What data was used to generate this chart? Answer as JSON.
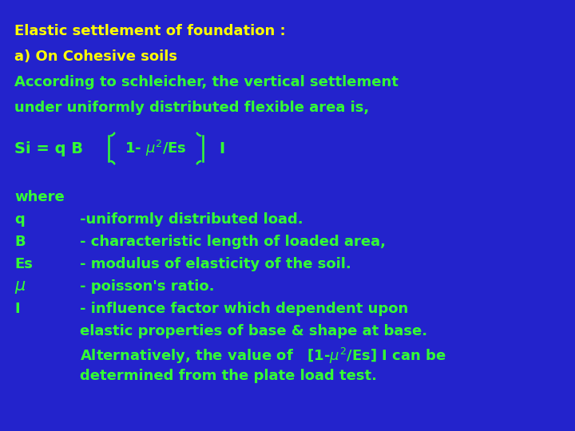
{
  "bg_color": "#2323CC",
  "text_color_yellow": "#FFFF00",
  "text_color_green": "#33FF33",
  "title_lines": [
    "Elastic settlement of foundation :",
    "a) On Cohesive soils",
    "According to schleicher, the vertical settlement",
    "under uniformly distributed flexible area is,"
  ],
  "font_size_title": 13,
  "font_size_formula": 13,
  "font_size_body": 12.5
}
